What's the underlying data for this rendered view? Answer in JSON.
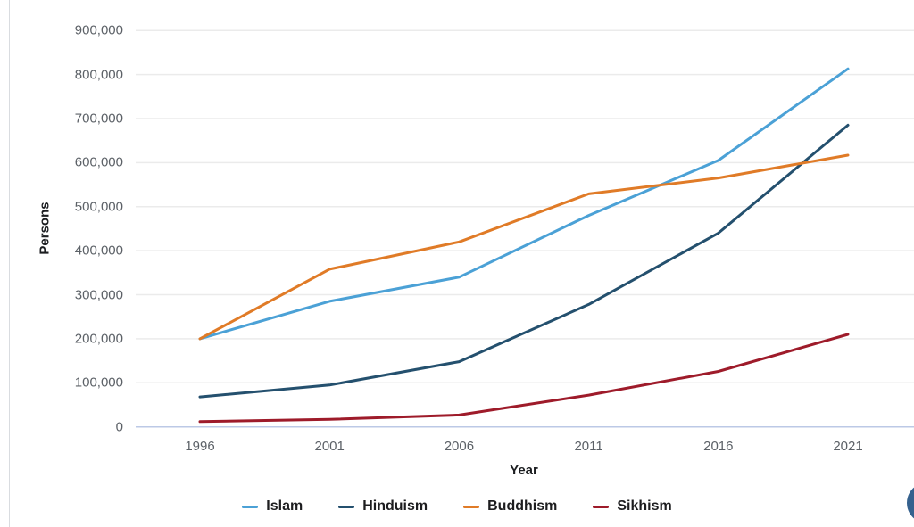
{
  "chart_data": {
    "type": "line",
    "title": "",
    "xlabel": "Year",
    "ylabel": "Persons",
    "categories": [
      "1996",
      "2001",
      "2006",
      "2011",
      "2016",
      "2021"
    ],
    "series": [
      {
        "name": "Islam",
        "color": "#4ba1d6",
        "values": [
          200000,
          285000,
          340000,
          480000,
          605000,
          813000
        ]
      },
      {
        "name": "Hinduism",
        "color": "#24506e",
        "values": [
          68000,
          95000,
          148000,
          278000,
          440000,
          685000
        ]
      },
      {
        "name": "Buddhism",
        "color": "#e07b27",
        "values": [
          200000,
          358000,
          420000,
          529000,
          565000,
          617000
        ]
      },
      {
        "name": "Sikhism",
        "color": "#9e1b2a",
        "values": [
          12000,
          17000,
          27000,
          72000,
          126000,
          210000
        ]
      }
    ],
    "ylim": [
      0,
      900000
    ],
    "ytick_step": 100000,
    "ytick_labels": [
      "0",
      "100,000",
      "200,000",
      "300,000",
      "400,000",
      "500,000",
      "600,000",
      "700,000",
      "800,000",
      "900,000"
    ],
    "grid": "horizontal",
    "legend_position": "bottom"
  },
  "ui": {
    "grid_color": "#ebebeb",
    "zero_line_color": "#bcc9e6",
    "tick_label_color": "#5c6167",
    "axis_title_color": "#1c1e21",
    "legend_text_color": "#1d1d1f",
    "page_left_border_color": "#d9dce0",
    "fab_color": "#35618e"
  }
}
